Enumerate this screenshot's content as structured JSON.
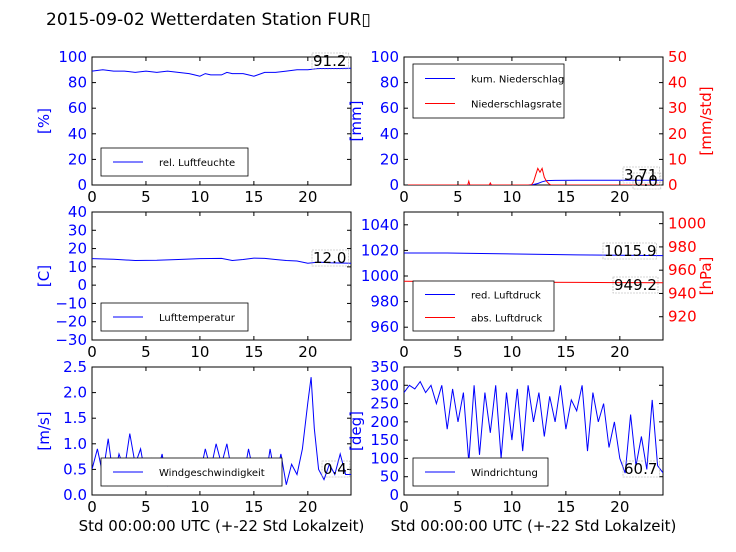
{
  "page_title": "2015-09-02 Wetterdaten Station FUR▯",
  "xlabel": "Std 00:00:00 UTC (+-22 Std Lokalzeit)",
  "colors": {
    "blue": "#0000ff",
    "red": "#ff0000",
    "black": "#000000"
  },
  "chart_data": [
    {
      "type": "line",
      "title": "",
      "xlabel": "",
      "ylabel": "[%]",
      "xlim": [
        0,
        24
      ],
      "ylim": [
        0,
        100
      ],
      "xticks": [
        0,
        5,
        10,
        15,
        20
      ],
      "yticks": [
        0,
        20,
        40,
        60,
        80,
        100
      ],
      "legend": "lower-left",
      "last_value": "91.2",
      "series": [
        {
          "name": "rel. Luftfeuchte",
          "color": "#0000ff",
          "x": [
            0,
            1,
            2,
            3,
            4,
            5,
            6,
            7,
            8,
            9,
            9.5,
            10,
            10.5,
            11,
            12,
            12.5,
            13,
            14,
            14.5,
            15,
            16,
            17,
            18,
            19,
            20,
            21,
            22,
            23,
            24
          ],
          "y": [
            89,
            90,
            89,
            89,
            88,
            89,
            88,
            89,
            88,
            87,
            86,
            85,
            87,
            86,
            86,
            88,
            87,
            87,
            86,
            85,
            88,
            88,
            89,
            90,
            90,
            91,
            91,
            91,
            91.2
          ]
        }
      ]
    },
    {
      "type": "line",
      "title": "",
      "xlabel": "",
      "ylabel": "[mm]",
      "y2label": "[mm/std]",
      "xlim": [
        0,
        24
      ],
      "ylim": [
        0,
        100
      ],
      "y2lim": [
        0,
        50
      ],
      "xticks": [
        0,
        5,
        10,
        15,
        20
      ],
      "yticks": [
        0,
        20,
        40,
        60,
        80,
        100
      ],
      "y2ticks": [
        0,
        10,
        20,
        30,
        40,
        50
      ],
      "legend": "top-left",
      "last_values": [
        "3.71",
        "0.0"
      ],
      "series": [
        {
          "name": "kum. Niederschlag",
          "color": "#0000ff",
          "axis": "left",
          "x": [
            0,
            11.5,
            12,
            12.4,
            12.8,
            13.2,
            14,
            16,
            18,
            20,
            22,
            24
          ],
          "y": [
            0,
            0,
            0.4,
            1.2,
            2.5,
            3.4,
            3.6,
            3.7,
            3.7,
            3.71,
            3.71,
            3.71
          ]
        },
        {
          "name": "Niederschlagsrate",
          "color": "#ff0000",
          "axis": "right",
          "x": [
            0,
            5.9,
            6.0,
            6.1,
            6.2,
            7.9,
            8.0,
            8.1,
            11.8,
            12.0,
            12.2,
            12.4,
            12.6,
            12.8,
            13.0,
            13.2,
            13.4,
            13.6,
            24
          ],
          "y": [
            0,
            0,
            1.5,
            0,
            0,
            0,
            0.8,
            0,
            0,
            1.2,
            4,
            6.5,
            5,
            6.5,
            3,
            1.5,
            0.6,
            0,
            0
          ]
        }
      ]
    },
    {
      "type": "line",
      "title": "",
      "xlabel": "",
      "ylabel": "[C]",
      "xlim": [
        0,
        24
      ],
      "ylim": [
        -30,
        40
      ],
      "xticks": [
        0,
        5,
        10,
        15,
        20
      ],
      "yticks": [
        -30,
        -20,
        -10,
        0,
        10,
        20,
        30,
        40
      ],
      "legend": "lower-left",
      "last_value": "12.0",
      "series": [
        {
          "name": "Lufttemperatur",
          "color": "#0000ff",
          "x": [
            0,
            2,
            4,
            6,
            8,
            10,
            12,
            13,
            14,
            15,
            16,
            17,
            18,
            19,
            20,
            21,
            22,
            24
          ],
          "y": [
            14.5,
            14.2,
            13.5,
            13.6,
            14,
            14.5,
            14.6,
            13.5,
            14,
            14.8,
            14.6,
            14,
            13.5,
            13.2,
            12,
            12.6,
            12.2,
            12.0
          ]
        }
      ]
    },
    {
      "type": "line",
      "title": "",
      "xlabel": "",
      "ylabel": "",
      "y2label": "[hPa]",
      "xlim": [
        0,
        24
      ],
      "ylim": [
        950,
        1050
      ],
      "y2lim": [
        900,
        1010
      ],
      "xticks": [
        0,
        5,
        10,
        15,
        20
      ],
      "yticks": [
        960,
        980,
        1000,
        1020,
        1040
      ],
      "y2ticks": [
        920,
        940,
        960,
        980,
        1000
      ],
      "legend": "lower-left",
      "last_values": [
        "1015.9",
        "949.2"
      ],
      "series": [
        {
          "name": "red. Luftdruck",
          "color": "#0000ff",
          "axis": "left",
          "x": [
            0,
            4,
            8,
            12,
            16,
            20,
            24
          ],
          "y": [
            1018,
            1018,
            1017.5,
            1017,
            1016.5,
            1016.2,
            1015.9
          ]
        },
        {
          "name": "abs. Luftdruck",
          "color": "#ff0000",
          "axis": "right",
          "x": [
            0,
            4,
            8,
            12,
            16,
            20,
            24
          ],
          "y": [
            950.5,
            950.3,
            950,
            949.7,
            949.5,
            949.3,
            949.2
          ]
        }
      ]
    },
    {
      "type": "line",
      "title": "",
      "xlabel": "Std 00:00:00 UTC (+-22 Std Lokalzeit)",
      "ylabel": "[m/s]",
      "xlim": [
        0,
        24
      ],
      "ylim": [
        0,
        2.5
      ],
      "xticks": [
        0,
        5,
        10,
        15,
        20
      ],
      "yticks": [
        0,
        0.5,
        1.0,
        1.5,
        2.0,
        2.5
      ],
      "ytick_labels": [
        "0.0",
        "0.5",
        "1.0",
        "1.5",
        "2.0",
        "2.5"
      ],
      "legend": "lower-left",
      "last_value": "0.4",
      "series": [
        {
          "name": "Windgeschwindigkeit",
          "color": "#0000ff",
          "x": [
            0,
            0.5,
            1,
            1.5,
            2,
            2.5,
            3,
            3.5,
            4,
            4.5,
            5,
            5.5,
            6,
            6.5,
            7,
            7.5,
            8,
            8.5,
            9,
            9.5,
            10,
            10.5,
            11,
            11.5,
            12,
            12.5,
            13,
            13.5,
            14,
            14.5,
            15,
            15.5,
            16,
            16.5,
            17,
            17.5,
            18,
            18.5,
            19,
            19.5,
            20,
            20.3,
            20.6,
            21,
            21.5,
            22,
            22.5,
            23,
            23.5,
            24
          ],
          "y": [
            0.5,
            0.9,
            0.4,
            1.1,
            0.3,
            0.8,
            0.5,
            1.2,
            0.6,
            0.9,
            0.3,
            0.7,
            0.4,
            0.8,
            0.2,
            0.5,
            0.3,
            0.4,
            0.3,
            0.7,
            0.4,
            0.9,
            0.5,
            1.0,
            0.6,
            1.0,
            0.4,
            0.6,
            0.3,
            0.9,
            0.4,
            0.7,
            0.2,
            0.9,
            0.3,
            0.8,
            0.2,
            0.6,
            0.4,
            0.9,
            1.8,
            2.3,
            1.3,
            0.5,
            0.3,
            0.6,
            0.4,
            0.8,
            0.4,
            0.4
          ]
        }
      ]
    },
    {
      "type": "line",
      "title": "",
      "xlabel": "Std 00:00:00 UTC (+-22 Std Lokalzeit)",
      "ylabel": "[deg]",
      "xlim": [
        0,
        24
      ],
      "ylim": [
        0,
        350
      ],
      "xticks": [
        0,
        5,
        10,
        15,
        20
      ],
      "yticks": [
        0,
        50,
        100,
        150,
        200,
        250,
        300,
        350
      ],
      "legend": "lower-left",
      "last_value": "60.7",
      "series": [
        {
          "name": "Windrichtung",
          "color": "#0000ff",
          "x": [
            0,
            0.5,
            1,
            1.5,
            2,
            2.5,
            3,
            3.5,
            4,
            4.5,
            5,
            5.5,
            6,
            6.5,
            7,
            7.5,
            8,
            8.5,
            9,
            9.5,
            10,
            10.5,
            11,
            11.5,
            12,
            12.5,
            13,
            13.5,
            14,
            14.5,
            15,
            15.5,
            16,
            16.5,
            17,
            17.5,
            18,
            18.5,
            19,
            19.5,
            20,
            20.5,
            21,
            21.5,
            22,
            22.5,
            23,
            23.5,
            24
          ],
          "y": [
            280,
            300,
            290,
            310,
            280,
            300,
            250,
            300,
            180,
            290,
            200,
            280,
            90,
            300,
            110,
            280,
            170,
            300,
            100,
            280,
            150,
            290,
            120,
            300,
            200,
            280,
            160,
            270,
            200,
            300,
            180,
            260,
            230,
            300,
            120,
            280,
            200,
            250,
            130,
            200,
            100,
            60,
            220,
            80,
            160,
            70,
            260,
            80,
            60.7
          ]
        }
      ]
    }
  ]
}
